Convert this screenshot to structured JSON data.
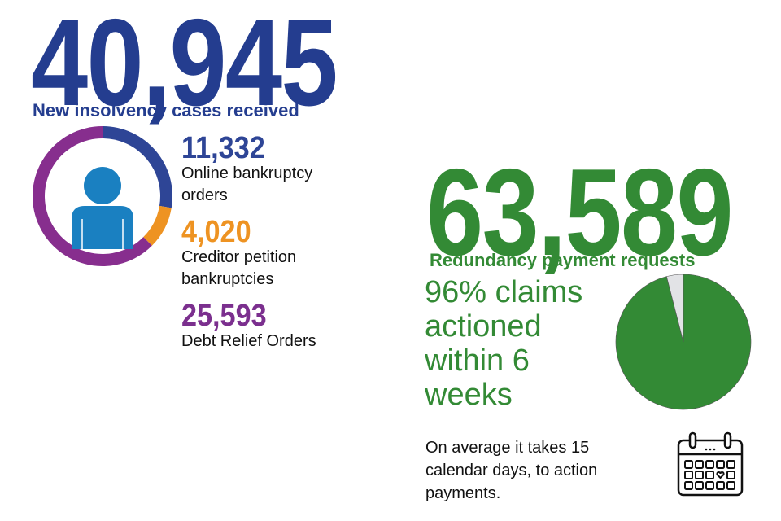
{
  "insolvency": {
    "total": "40,945",
    "total_label": "New insolvency cases received",
    "items": [
      {
        "value": "11,332",
        "label_line1": "Online bankruptcy",
        "label_line2": "orders",
        "color": "#2e4596"
      },
      {
        "value": "4,020",
        "label_line1": "Creditor petition",
        "label_line2": "bankruptcies",
        "color": "#ee9322"
      },
      {
        "value": "25,593",
        "label_line1": "Debt Relief Orders",
        "label_line2": "",
        "color": "#872e8e"
      }
    ],
    "icon": "person-icon"
  },
  "redundancy": {
    "total": "63,589",
    "total_label": "Redundancy payment requests",
    "claims_lines": [
      "96% claims",
      "actioned",
      "within 6",
      "weeks"
    ],
    "average_lines": [
      "On average it takes 15",
      "calendar days, to action",
      "payments."
    ],
    "icon": "calendar-icon"
  },
  "chart_data": [
    {
      "type": "pie",
      "variant": "donut",
      "title": "New insolvency cases received",
      "categories": [
        "Online bankruptcy orders",
        "Creditor petition bankruptcies",
        "Debt Relief Orders"
      ],
      "values": [
        11332,
        4020,
        25593
      ],
      "colors": [
        "#2e4596",
        "#ee9322",
        "#872e8e"
      ]
    },
    {
      "type": "pie",
      "title": "Redundancy payment claims actioned within 6 weeks",
      "categories": [
        "Actioned within 6 weeks",
        "Other"
      ],
      "values": [
        96,
        4
      ],
      "colors": [
        "#338a35",
        "#e2e3e6"
      ]
    }
  ]
}
